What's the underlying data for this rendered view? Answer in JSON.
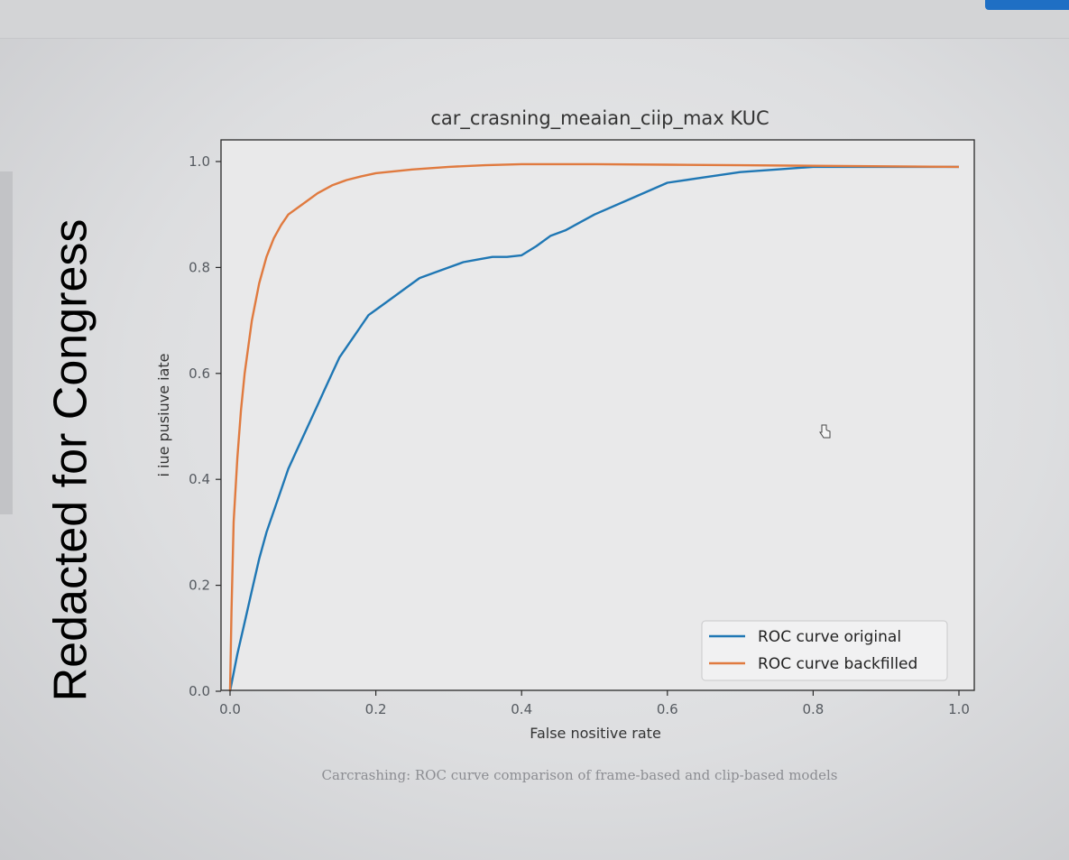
{
  "redaction_text": "Redacted for Congress",
  "caption": "Carcrashing: ROC curve comparison of frame-based and clip-based models",
  "chart_data": {
    "type": "line",
    "title": "car_crasning_meaian_ciip_max KUC",
    "xlabel": "False nositive rate",
    "ylabel": "i iue pusiuve iate",
    "xlim": [
      0,
      1
    ],
    "ylim": [
      0,
      1.05
    ],
    "x_ticks": [
      "0.0",
      "0.2",
      "0.4",
      "0.6",
      "0.8",
      "1.0"
    ],
    "y_ticks": [
      "0.0",
      "0.2",
      "0.4",
      "0.6",
      "0.8",
      "1.0"
    ],
    "grid": false,
    "legend_position": "lower-right",
    "series": [
      {
        "name": "ROC curve original",
        "color": "#1f77b4",
        "x": [
          0,
          0.01,
          0.02,
          0.03,
          0.04,
          0.05,
          0.06,
          0.07,
          0.08,
          0.09,
          0.1,
          0.11,
          0.12,
          0.13,
          0.14,
          0.15,
          0.16,
          0.17,
          0.18,
          0.19,
          0.2,
          0.22,
          0.24,
          0.26,
          0.28,
          0.3,
          0.32,
          0.34,
          0.36,
          0.38,
          0.4,
          0.42,
          0.44,
          0.46,
          0.5,
          0.55,
          0.6,
          0.65,
          0.7,
          0.75,
          0.8,
          0.85,
          0.9,
          1.0
        ],
        "y": [
          0,
          0.07,
          0.13,
          0.19,
          0.25,
          0.3,
          0.34,
          0.38,
          0.42,
          0.45,
          0.48,
          0.51,
          0.54,
          0.57,
          0.6,
          0.63,
          0.65,
          0.67,
          0.69,
          0.71,
          0.72,
          0.74,
          0.76,
          0.78,
          0.79,
          0.8,
          0.81,
          0.815,
          0.82,
          0.82,
          0.823,
          0.84,
          0.86,
          0.87,
          0.9,
          0.93,
          0.96,
          0.97,
          0.98,
          0.985,
          0.99,
          0.99,
          0.99,
          0.99
        ]
      },
      {
        "name": "ROC curve backfilled",
        "color": "#e07a3f",
        "x": [
          0,
          0.002,
          0.005,
          0.01,
          0.015,
          0.02,
          0.03,
          0.04,
          0.05,
          0.06,
          0.07,
          0.08,
          0.1,
          0.12,
          0.14,
          0.16,
          0.18,
          0.2,
          0.25,
          0.3,
          0.35,
          0.4,
          0.5,
          0.6,
          0.7,
          0.8,
          0.9,
          1.0
        ],
        "y": [
          0,
          0.15,
          0.32,
          0.44,
          0.53,
          0.6,
          0.7,
          0.77,
          0.82,
          0.855,
          0.88,
          0.9,
          0.92,
          0.94,
          0.955,
          0.965,
          0.972,
          0.978,
          0.985,
          0.99,
          0.993,
          0.995,
          0.995,
          0.994,
          0.993,
          0.992,
          0.991,
          0.99
        ]
      }
    ]
  }
}
